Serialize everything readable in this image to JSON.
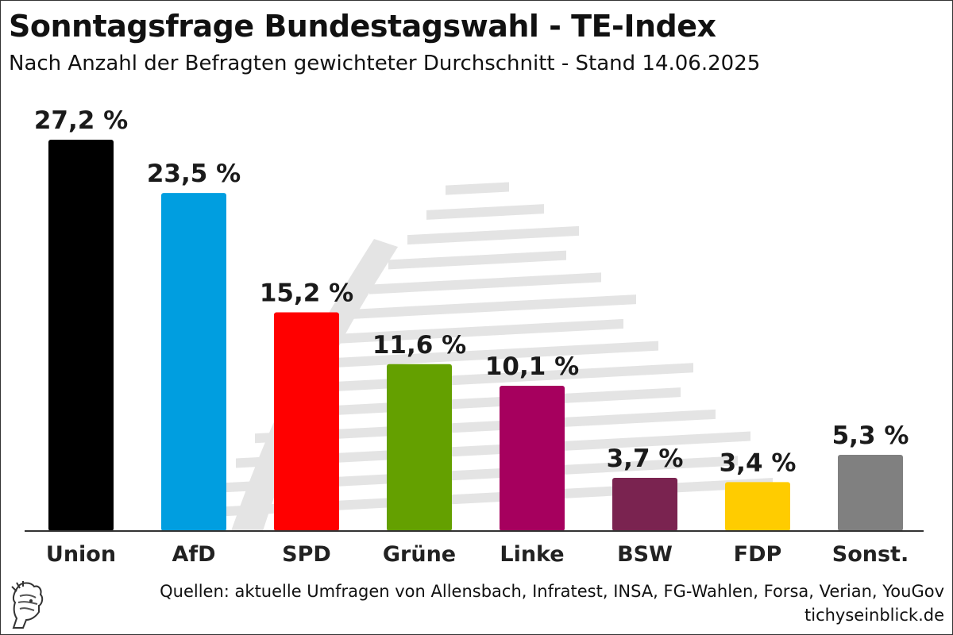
{
  "chart_data": {
    "type": "bar",
    "title": "Sonntagsfrage Bundestagswahl - TE-Index",
    "subtitle": "Nach Anzahl der Befragten gewichteter Durchschnitt - Stand 14.06.2025",
    "categories": [
      "Union",
      "AfD",
      "SPD",
      "Grüne",
      "Linke",
      "BSW",
      "FDP",
      "Sonst."
    ],
    "values": [
      27.2,
      23.5,
      15.2,
      11.6,
      10.1,
      3.7,
      3.4,
      5.3
    ],
    "value_labels": [
      "27,2 %",
      "23,5 %",
      "15,2 %",
      "11,6 %",
      "10,1 %",
      "3,7 %",
      "3,4 %",
      "5,3 %"
    ],
    "colors": [
      "#000000",
      "#009ee0",
      "#ff0000",
      "#64a000",
      "#a6005e",
      "#7a2350",
      "#ffcc00",
      "#808080"
    ],
    "ylim": [
      0,
      27.2
    ],
    "xlabel": "",
    "ylabel": "",
    "grid": false,
    "legend": "none"
  },
  "footer": {
    "source": "Quellen: aktuelle Umfragen von Allensbach, Infratest, INSA, FG-Wahlen, Forsa, Verian, YouGov",
    "site": "tichyseinblick.de"
  },
  "watermark": {
    "icon": "reichstag-dome-watermark",
    "color": "#e4e4e4"
  },
  "logo": {
    "icon": "hermes-head-logo"
  }
}
